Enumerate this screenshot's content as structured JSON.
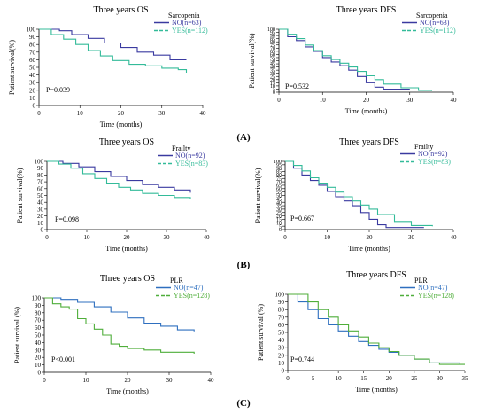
{
  "chart_data": [
    {
      "type": "line",
      "title": "Three years OS",
      "xlabel": "Time (months)",
      "ylabel": "Patient survival(%)",
      "xlim": [
        0,
        40
      ],
      "ylim": [
        0,
        100
      ],
      "xticks": [
        0,
        10,
        20,
        30,
        40
      ],
      "yticks": [
        0,
        10,
        20,
        30,
        40,
        50,
        60,
        70,
        80,
        90,
        100
      ],
      "legend_title": "Sarcopenia",
      "p_value": "P=0.039",
      "legend_placement": "top-right",
      "series": [
        {
          "name": "NO(n=63)",
          "color": "#3a3aa0",
          "x": [
            0,
            5,
            8,
            12,
            16,
            20,
            24,
            28,
            32,
            36
          ],
          "y": [
            100,
            98,
            93,
            88,
            82,
            76,
            70,
            66,
            60,
            60
          ]
        },
        {
          "name": "YES(n=112)",
          "color": "#33bb99",
          "x": [
            0,
            3,
            6,
            9,
            12,
            15,
            18,
            22,
            26,
            30,
            34,
            36
          ],
          "y": [
            100,
            93,
            87,
            80,
            72,
            65,
            59,
            54,
            52,
            49,
            47,
            43
          ]
        }
      ]
    },
    {
      "type": "line",
      "title": "Three years DFS",
      "xlabel": "Time (months)",
      "ylabel": "Patient survival(%)",
      "xlim": [
        0,
        40
      ],
      "ylim": [
        0,
        100
      ],
      "xticks": [
        0,
        10,
        20,
        30,
        40
      ],
      "yticks": [
        0,
        5,
        10,
        15,
        20,
        25,
        30,
        35,
        40,
        45,
        50,
        55,
        60,
        65,
        70,
        75,
        80,
        85,
        90,
        95,
        100
      ],
      "legend_title": "Sarcopenia",
      "p_value": "P=0.532",
      "legend_placement": "top-right",
      "series": [
        {
          "name": "NO(n=63)",
          "color": "#3a3aa0",
          "x": [
            0,
            2,
            4,
            6,
            8,
            10,
            12,
            14,
            16,
            18,
            20,
            22,
            24,
            30
          ],
          "y": [
            100,
            88,
            82,
            72,
            65,
            55,
            48,
            42,
            35,
            25,
            15,
            8,
            5,
            5
          ]
        },
        {
          "name": "YES(n=112)",
          "color": "#33bb99",
          "x": [
            0,
            2,
            4,
            6,
            8,
            10,
            12,
            14,
            16,
            18,
            20,
            22,
            24,
            28,
            32,
            35
          ],
          "y": [
            100,
            92,
            85,
            75,
            66,
            58,
            52,
            46,
            40,
            33,
            26,
            20,
            13,
            7,
            3,
            2
          ]
        }
      ]
    },
    {
      "type": "line",
      "title": "Three years OS",
      "xlabel": "Time (months)",
      "ylabel": "Patient survival(%)",
      "xlim": [
        0,
        40
      ],
      "ylim": [
        0,
        100
      ],
      "xticks": [
        0,
        10,
        20,
        30,
        40
      ],
      "yticks": [
        0,
        10,
        20,
        30,
        40,
        50,
        60,
        70,
        80,
        90,
        100
      ],
      "legend_title": "Frailty",
      "p_value": "P=0.098",
      "legend_placement": "top-right",
      "series": [
        {
          "name": "NO(n=92)",
          "color": "#3a3aa0",
          "x": [
            0,
            4,
            8,
            12,
            16,
            20,
            24,
            28,
            32,
            36
          ],
          "y": [
            100,
            97,
            92,
            85,
            78,
            72,
            66,
            62,
            58,
            54
          ]
        },
        {
          "name": "YES(n=83)",
          "color": "#33bb99",
          "x": [
            0,
            3,
            6,
            9,
            12,
            15,
            18,
            21,
            24,
            28,
            32,
            36
          ],
          "y": [
            100,
            96,
            90,
            82,
            75,
            68,
            62,
            58,
            53,
            50,
            47,
            45
          ]
        }
      ]
    },
    {
      "type": "line",
      "title": "Three years DFS",
      "xlabel": "Time (months)",
      "ylabel": "Patient survival(%)",
      "xlim": [
        0,
        40
      ],
      "ylim": [
        0,
        100
      ],
      "xticks": [
        0,
        10,
        20,
        30,
        40
      ],
      "yticks": [
        0,
        5,
        10,
        15,
        20,
        25,
        30,
        35,
        40,
        45,
        50,
        55,
        60,
        65,
        70,
        75,
        80,
        85,
        90,
        95,
        100
      ],
      "legend_title": "Frailty",
      "p_value": "P=0.667",
      "legend_placement": "top-right",
      "series": [
        {
          "name": "NO(n=92)",
          "color": "#3a3aa0",
          "x": [
            0,
            2,
            4,
            6,
            8,
            10,
            12,
            14,
            16,
            18,
            20,
            22,
            24,
            33
          ],
          "y": [
            100,
            90,
            80,
            72,
            65,
            56,
            48,
            42,
            35,
            25,
            15,
            7,
            3,
            3
          ]
        },
        {
          "name": "YES(n=83)",
          "color": "#33bb99",
          "x": [
            0,
            2,
            4,
            6,
            8,
            10,
            12,
            14,
            16,
            18,
            20,
            22,
            26,
            30,
            35
          ],
          "y": [
            100,
            94,
            86,
            76,
            68,
            62,
            55,
            48,
            42,
            36,
            30,
            22,
            12,
            6,
            5
          ]
        }
      ]
    },
    {
      "type": "line",
      "title": "Three years OS",
      "xlabel": "Time (months)",
      "ylabel": "Patient survival (%)",
      "xlim": [
        0,
        40
      ],
      "ylim": [
        0,
        100
      ],
      "xticks": [
        0,
        10,
        20,
        30,
        40
      ],
      "yticks": [
        0,
        10,
        20,
        30,
        40,
        50,
        60,
        70,
        80,
        90,
        100
      ],
      "legend_title": "PLR",
      "p_value": "P<0.001",
      "legend_placement": "top-right",
      "series": [
        {
          "name": "NO(n=47)",
          "color": "#2e6fbf",
          "x": [
            0,
            4,
            8,
            12,
            16,
            20,
            24,
            28,
            32,
            36
          ],
          "y": [
            100,
            98,
            94,
            88,
            81,
            73,
            66,
            62,
            57,
            55
          ]
        },
        {
          "name": "YES(n=128)",
          "color": "#4fae3a",
          "x": [
            0,
            2,
            4,
            6,
            8,
            10,
            12,
            14,
            16,
            18,
            20,
            24,
            28,
            36
          ],
          "y": [
            100,
            92,
            88,
            85,
            72,
            65,
            58,
            50,
            38,
            35,
            32,
            30,
            27,
            25
          ]
        }
      ]
    },
    {
      "type": "line",
      "title": "Three years DFS",
      "xlabel": "Time (months)",
      "ylabel": "Patient survival (%)",
      "xlim": [
        0,
        35
      ],
      "ylim": [
        0,
        100
      ],
      "xticks": [
        0,
        5,
        10,
        15,
        20,
        25,
        30,
        35
      ],
      "yticks": [
        0,
        10,
        20,
        30,
        40,
        50,
        60,
        70,
        80,
        90,
        100
      ],
      "legend_title": "PLR",
      "p_value": "P=0.744",
      "legend_placement": "top-right",
      "series": [
        {
          "name": "NO(n=47)",
          "color": "#2e6fbf",
          "x": [
            0,
            2,
            4,
            6,
            8,
            10,
            12,
            14,
            16,
            18,
            20,
            22,
            25,
            28,
            34
          ],
          "y": [
            100,
            90,
            80,
            68,
            60,
            52,
            45,
            38,
            33,
            28,
            24,
            20,
            15,
            10,
            8
          ]
        },
        {
          "name": "YES(n=128)",
          "color": "#4fae3a",
          "x": [
            0,
            2,
            4,
            6,
            8,
            10,
            12,
            14,
            16,
            18,
            20,
            22,
            25,
            28,
            30,
            35
          ],
          "y": [
            100,
            100,
            90,
            80,
            70,
            60,
            52,
            44,
            36,
            30,
            25,
            20,
            15,
            10,
            8,
            8
          ]
        }
      ]
    }
  ],
  "row_labels": [
    "(A)",
    "(B)",
    "(C)"
  ]
}
